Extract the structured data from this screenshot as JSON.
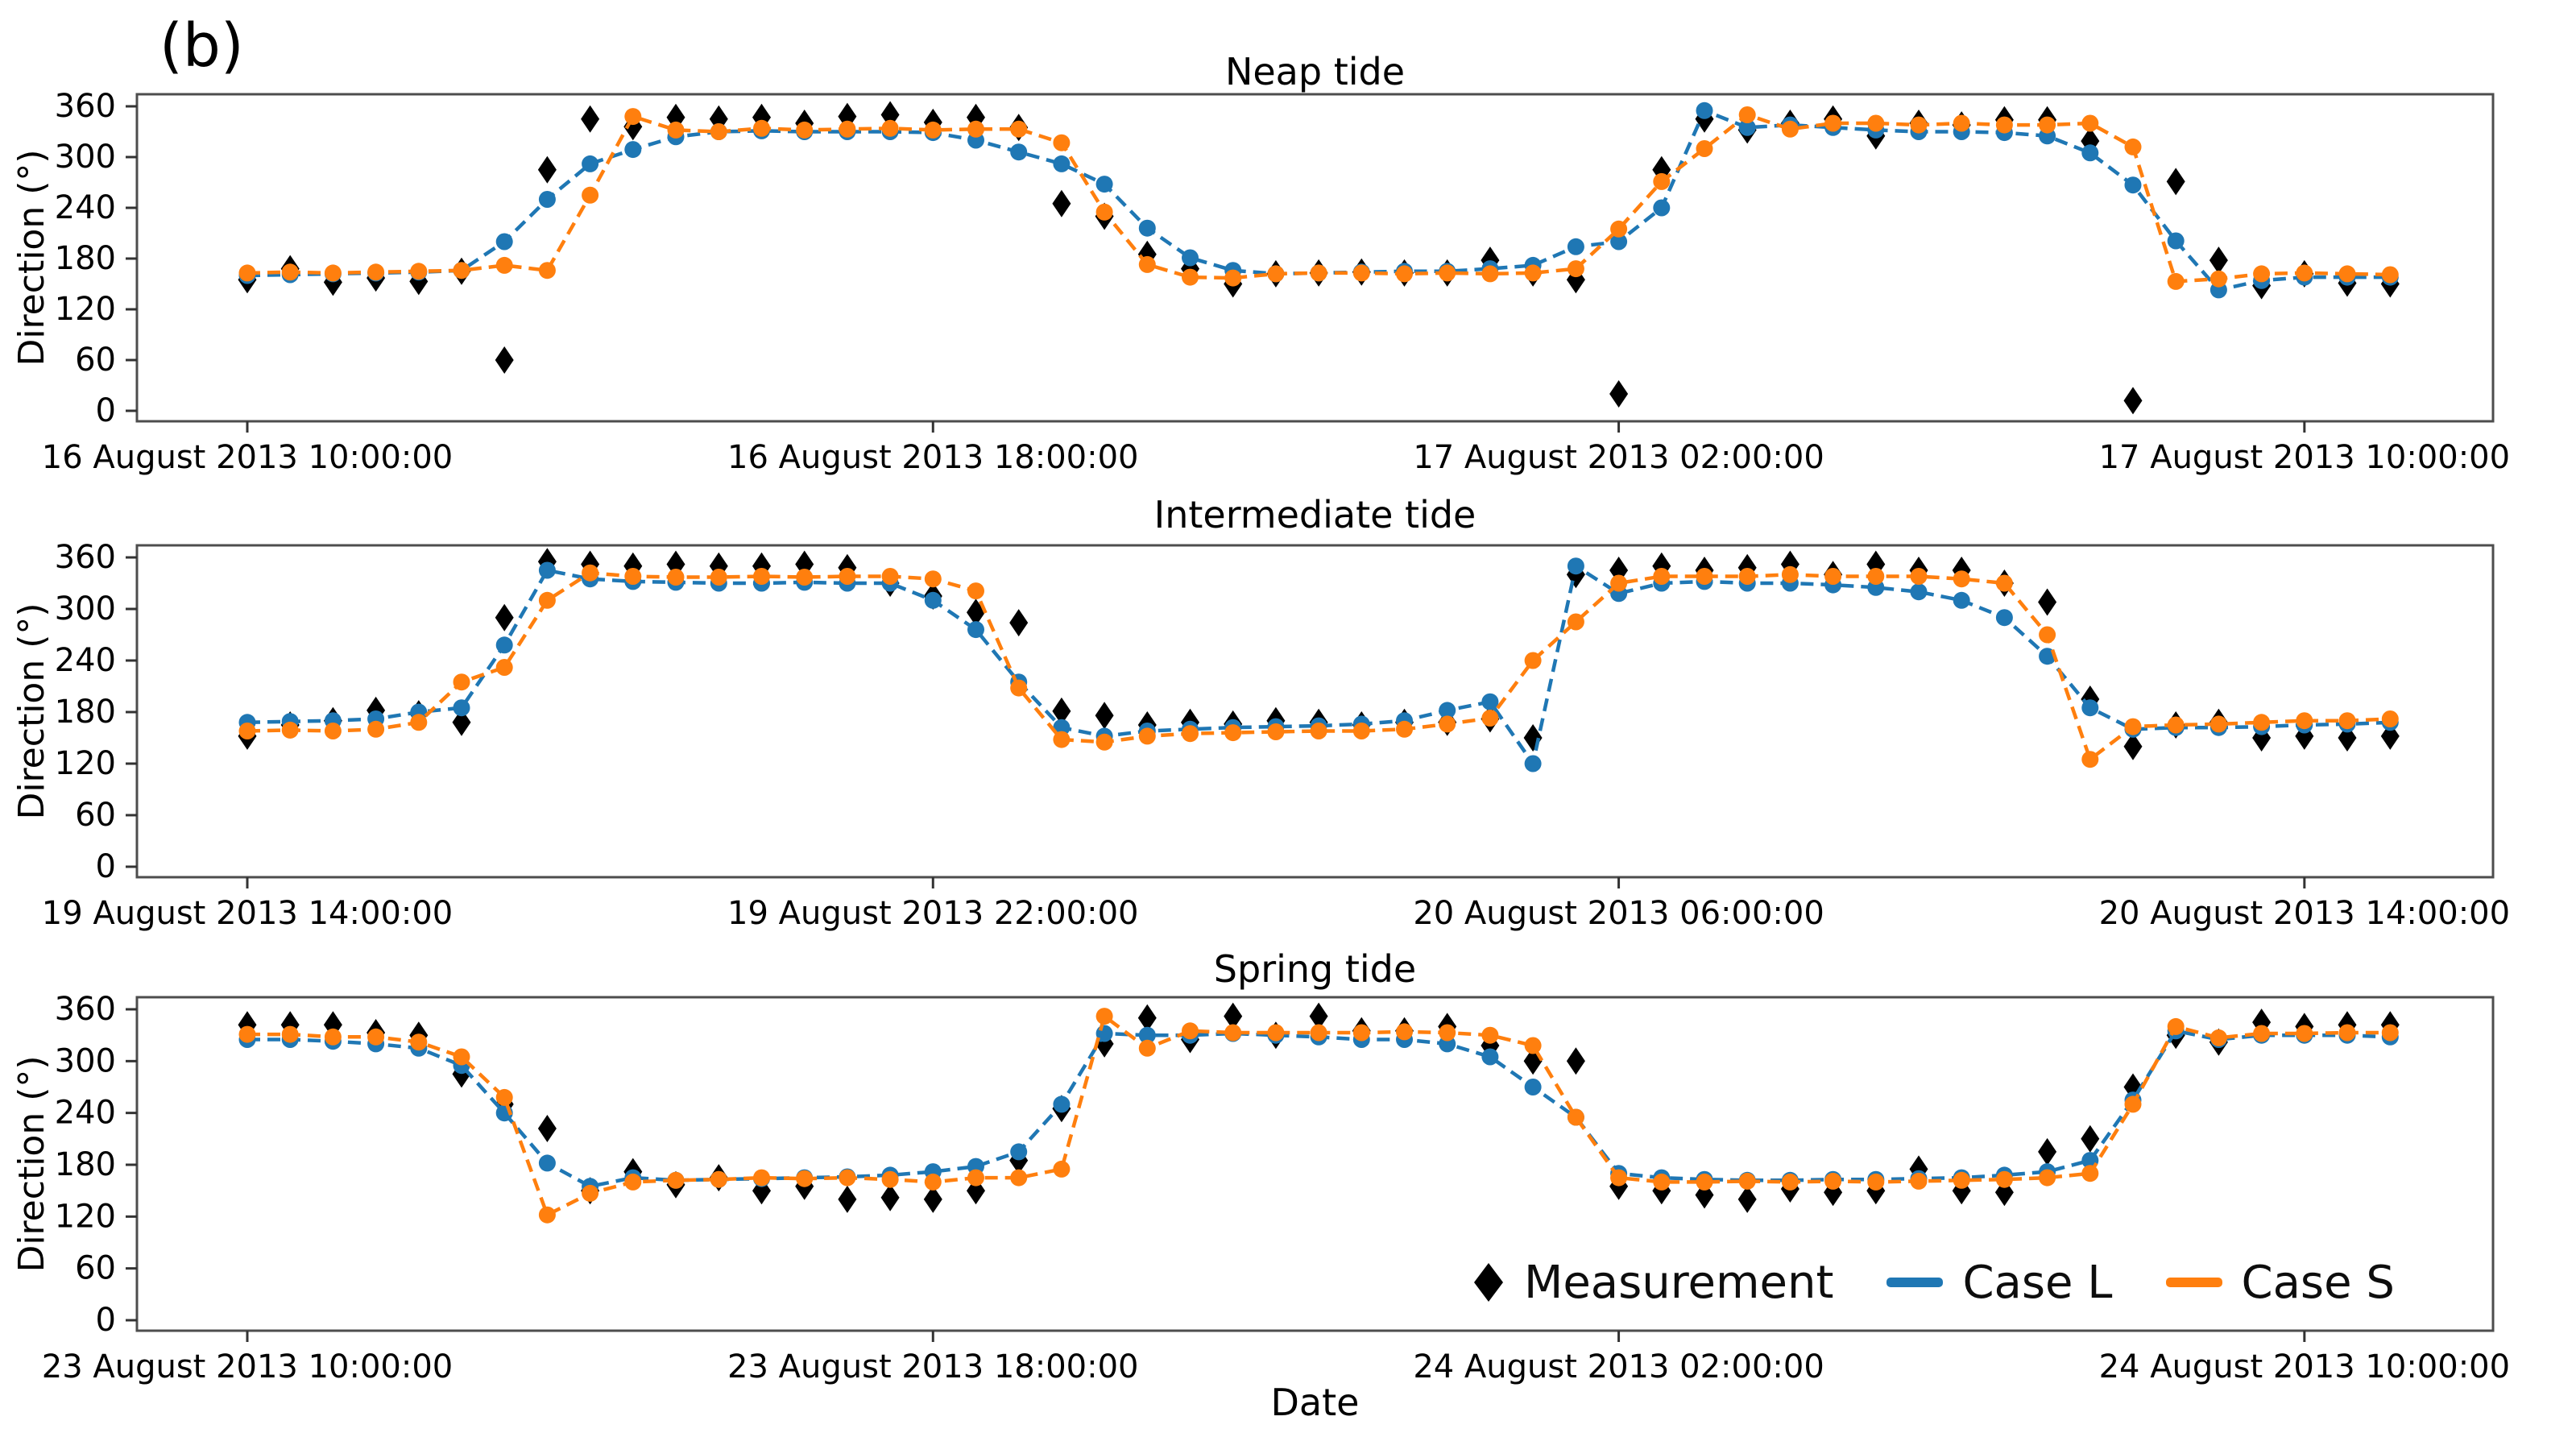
{
  "page": {
    "panel_label": "(b)",
    "xlabel": "Date",
    "background": "#ffffff",
    "spine_color": "#4d4d4d",
    "text_color": "#000000"
  },
  "legend": {
    "position": "lower right of third subplot, frameless",
    "items": [
      {
        "label": "Measurement",
        "marker": "diamond",
        "color": "#000000"
      },
      {
        "label": "Case L",
        "marker": "line",
        "color": "#1f77b4"
      },
      {
        "label": "Case S",
        "marker": "line",
        "color": "#ff7f0e"
      }
    ]
  },
  "chart_data": [
    {
      "type": "line",
      "title": "Neap tide",
      "ylabel": "Direction (°)",
      "ylim": [
        0,
        360
      ],
      "yticks": [
        0,
        60,
        120,
        180,
        240,
        300,
        360
      ],
      "grid": false,
      "x_unit": "hours since first tick",
      "x_step_hours": 0.5,
      "x_tick_hours": [
        0,
        8,
        16,
        24
      ],
      "x_tick_labels": [
        "16 August 2013 10:00:00",
        "16 August 2013 18:00:00",
        "17 August 2013 02:00:00",
        "17 August 2013 10:00:00"
      ],
      "series": [
        {
          "name": "Measurement",
          "color": "#000000",
          "marker": "diamond",
          "linestyle": "none",
          "values": [
            155,
            168,
            152,
            157,
            153,
            165,
            60,
            285,
            345,
            336,
            347,
            345,
            347,
            340,
            348,
            350,
            341,
            347,
            335,
            245,
            230,
            185,
            168,
            150,
            162,
            163,
            164,
            163,
            163,
            178,
            163,
            155,
            20,
            285,
            345,
            332,
            340,
            345,
            325,
            340,
            338,
            344,
            344,
            319,
            12,
            271,
            178,
            148,
            162,
            151,
            150
          ]
        },
        {
          "name": "Case L",
          "color": "#1f77b4",
          "marker": "circle",
          "linestyle": "dashed",
          "values": [
            160,
            161,
            162,
            163,
            164,
            166,
            200,
            250,
            292,
            309,
            324,
            330,
            331,
            330,
            330,
            330,
            329,
            320,
            306,
            292,
            268,
            216,
            181,
            166,
            162,
            163,
            164,
            165,
            165,
            168,
            172,
            194,
            200,
            240,
            355,
            335,
            338,
            335,
            332,
            330,
            330,
            329,
            325,
            305,
            267,
            201,
            143,
            154,
            158,
            158,
            158
          ]
        },
        {
          "name": "Case S",
          "color": "#ff7f0e",
          "marker": "circle",
          "linestyle": "dashed",
          "values": [
            163,
            164,
            163,
            164,
            165,
            166,
            172,
            166,
            255,
            348,
            332,
            330,
            334,
            332,
            333,
            334,
            332,
            333,
            333,
            317,
            235,
            173,
            158,
            157,
            162,
            163,
            163,
            162,
            163,
            162,
            163,
            168,
            215,
            271,
            310,
            350,
            333,
            340,
            340,
            338,
            340,
            338,
            338,
            340,
            312,
            153,
            156,
            162,
            163,
            162,
            161
          ]
        }
      ]
    },
    {
      "type": "line",
      "title": "Intermediate tide",
      "ylabel": "Direction (°)",
      "ylim": [
        0,
        360
      ],
      "yticks": [
        0,
        60,
        120,
        180,
        240,
        300,
        360
      ],
      "grid": false,
      "x_unit": "hours since first tick",
      "x_step_hours": 0.5,
      "x_tick_hours": [
        0,
        8,
        16,
        24
      ],
      "x_tick_labels": [
        "19 August 2013 14:00:00",
        "19 August 2013 22:00:00",
        "20 August 2013 06:00:00",
        "20 August 2013 14:00:00"
      ],
      "series": [
        {
          "name": "Measurement",
          "color": "#000000",
          "marker": "diamond",
          "linestyle": "none",
          "values": [
            152,
            165,
            170,
            182,
            178,
            168,
            290,
            355,
            352,
            350,
            352,
            350,
            350,
            352,
            348,
            330,
            315,
            296,
            284,
            181,
            176,
            165,
            168,
            166,
            170,
            168,
            165,
            168,
            168,
            172,
            150,
            340,
            345,
            350,
            345,
            348,
            352,
            340,
            352,
            345,
            345,
            330,
            308,
            195,
            140,
            165,
            168,
            150,
            152,
            150,
            152
          ]
        },
        {
          "name": "Case L",
          "color": "#1f77b4",
          "marker": "circle",
          "linestyle": "dashed",
          "values": [
            168,
            169,
            170,
            172,
            180,
            185,
            258,
            345,
            335,
            332,
            331,
            330,
            330,
            331,
            330,
            330,
            310,
            276,
            215,
            162,
            152,
            158,
            160,
            162,
            163,
            164,
            166,
            170,
            182,
            192,
            120,
            350,
            318,
            330,
            332,
            330,
            330,
            328,
            325,
            320,
            310,
            290,
            245,
            185,
            160,
            162,
            162,
            163,
            165,
            166,
            168
          ]
        },
        {
          "name": "Case S",
          "color": "#ff7f0e",
          "marker": "circle",
          "linestyle": "dashed",
          "values": [
            158,
            159,
            158,
            160,
            168,
            215,
            232,
            310,
            342,
            338,
            337,
            337,
            338,
            337,
            338,
            338,
            335,
            321,
            208,
            148,
            145,
            152,
            155,
            156,
            157,
            158,
            158,
            160,
            166,
            173,
            240,
            285,
            330,
            338,
            338,
            338,
            340,
            338,
            338,
            338,
            335,
            330,
            270,
            125,
            163,
            165,
            166,
            168,
            170,
            170,
            172
          ]
        }
      ]
    },
    {
      "type": "line",
      "title": "Spring tide",
      "ylabel": "Direction (°)",
      "ylim": [
        0,
        360
      ],
      "yticks": [
        0,
        60,
        120,
        180,
        240,
        300,
        360
      ],
      "grid": false,
      "x_unit": "hours since first tick",
      "x_step_hours": 0.5,
      "x_tick_hours": [
        0,
        8,
        16,
        24
      ],
      "x_tick_labels": [
        "23 August 2013 10:00:00",
        "23 August 2013 18:00:00",
        "24 August 2013 02:00:00",
        "24 August 2013 10:00:00"
      ],
      "series": [
        {
          "name": "Measurement",
          "color": "#000000",
          "marker": "diamond",
          "linestyle": "none",
          "values": [
            342,
            342,
            342,
            333,
            330,
            285,
            250,
            222,
            150,
            172,
            157,
            165,
            150,
            155,
            140,
            142,
            140,
            150,
            185,
            245,
            320,
            350,
            325,
            352,
            330,
            352,
            335,
            335,
            340,
            318,
            300,
            300,
            155,
            150,
            145,
            140,
            152,
            148,
            150,
            175,
            150,
            148,
            195,
            210,
            270,
            330,
            322,
            345,
            340,
            342,
            342
          ]
        },
        {
          "name": "Case L",
          "color": "#1f77b4",
          "marker": "circle",
          "linestyle": "dashed",
          "values": [
            325,
            325,
            323,
            320,
            315,
            295,
            240,
            182,
            155,
            165,
            162,
            163,
            164,
            165,
            166,
            168,
            172,
            178,
            195,
            250,
            332,
            330,
            330,
            332,
            330,
            328,
            325,
            325,
            320,
            305,
            270,
            235,
            170,
            165,
            163,
            162,
            162,
            163,
            163,
            164,
            165,
            168,
            172,
            185,
            255,
            335,
            325,
            330,
            330,
            330,
            328
          ]
        },
        {
          "name": "Case S",
          "color": "#ff7f0e",
          "marker": "circle",
          "linestyle": "dashed",
          "values": [
            331,
            331,
            328,
            328,
            322,
            305,
            258,
            122,
            147,
            160,
            162,
            163,
            165,
            164,
            165,
            163,
            160,
            165,
            165,
            175,
            352,
            315,
            335,
            333,
            333,
            333,
            333,
            334,
            333,
            330,
            318,
            235,
            165,
            160,
            160,
            161,
            160,
            161,
            160,
            161,
            162,
            163,
            165,
            170,
            250,
            340,
            327,
            332,
            332,
            333,
            333
          ]
        }
      ]
    }
  ]
}
